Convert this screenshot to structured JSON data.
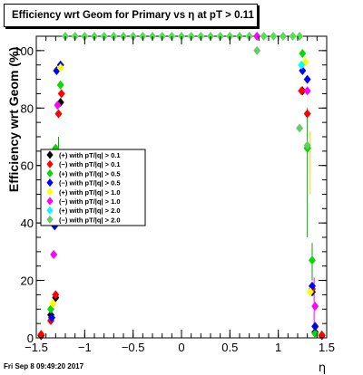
{
  "title": "Efficiency wrt Geom for Primary vs   η at pT > 0.11",
  "footer": {
    "timestamp": "Fri Sep  8 09:49:20 2017"
  },
  "chart_data": {
    "type": "scatter",
    "title": "Efficiency wrt Geom for Primary vs   η at pT > 0.11",
    "xlabel": "η",
    "ylabel": "Efficiency wrt Geom (%)",
    "xlim": [
      -1.5,
      1.5
    ],
    "ylim": [
      0,
      105
    ],
    "x_ticks": [
      "−1.5",
      "−1",
      "−0.5",
      "0",
      "0.5",
      "1",
      "1.5"
    ],
    "y_ticks": [
      "0",
      "20",
      "40",
      "60",
      "80",
      "100"
    ],
    "grid": false,
    "legend_position": "middle-left",
    "series": [
      {
        "name": "(+) with pT/|q| > 0.1",
        "color": "#000000",
        "points": [
          [
            -1.45,
            0.8
          ],
          [
            -1.35,
            8
          ],
          [
            -1.3,
            14
          ],
          [
            -1.27,
            64
          ],
          [
            -1.25,
            82
          ],
          [
            1.25,
            86
          ],
          [
            1.3,
            66
          ],
          [
            1.35,
            16
          ],
          [
            1.38,
            2
          ],
          [
            1.45,
            0.8
          ]
        ]
      },
      {
        "name": "(−) with pT/|q| > 0.1",
        "color": "#ff0000",
        "points": [
          [
            -1.45,
            1.2
          ],
          [
            -1.35,
            6
          ],
          [
            -1.3,
            15
          ],
          [
            -1.27,
            78
          ],
          [
            -1.24,
            85
          ],
          [
            1.24,
            86
          ],
          [
            1.3,
            78
          ],
          [
            1.35,
            17
          ],
          [
            1.38,
            4
          ],
          [
            1.45,
            1
          ]
        ]
      },
      {
        "name": "(+) with pT/|q| > 0.5",
        "color": "#00dd00",
        "points": [
          [
            -1.35,
            10
          ],
          [
            -1.3,
            66
          ],
          [
            -1.25,
            88
          ],
          [
            1.25,
            99
          ],
          [
            1.3,
            66
          ],
          [
            1.35,
            27
          ],
          [
            1.38,
            1.5
          ]
        ]
      },
      {
        "name": "(−) with pT/|q| > 0.5",
        "color": "#0000ff",
        "points": [
          [
            -1.34,
            7
          ],
          [
            -1.31,
            39
          ],
          [
            -1.29,
            93
          ],
          [
            -1.25,
            95
          ],
          [
            1.25,
            93
          ],
          [
            1.3,
            90
          ],
          [
            1.35,
            18
          ],
          [
            1.38,
            4
          ]
        ]
      },
      {
        "name": "(+) with pT/|q| > 1.0",
        "color": "#ffff00",
        "points": [
          [
            -1.33,
            12
          ],
          [
            -1.25,
            94
          ],
          [
            1.28,
            96
          ],
          [
            1.33,
            16
          ]
        ]
      },
      {
        "name": "(−) with pT/|q| > 1.0",
        "color": "#ff00ff",
        "points": [
          [
            -1.32,
            29
          ],
          [
            -1.28,
            81
          ],
          [
            0.78,
            105
          ],
          [
            1.3,
            86
          ],
          [
            1.38,
            11
          ]
        ]
      },
      {
        "name": "(+) with pT/|q| > 2.0",
        "color": "#00ffff",
        "points": [
          [
            -1.28,
            49
          ],
          [
            1.24,
            95
          ]
        ]
      },
      {
        "name": "(−) with pT/|q| > 2.0",
        "color": "#66cc66",
        "points": [
          [
            0.78,
            100
          ],
          [
            1.22,
            73
          ],
          [
            1.3,
            67
          ]
        ]
      },
      {
        "name": "",
        "color": "#55dd55",
        "points": [
          [
            -1.2,
            105
          ],
          [
            -1.1,
            105
          ],
          [
            -1.0,
            105
          ],
          [
            -0.9,
            105
          ],
          [
            -0.8,
            105
          ],
          [
            -0.7,
            105
          ],
          [
            -0.6,
            105
          ],
          [
            -0.5,
            105
          ],
          [
            -0.4,
            105
          ],
          [
            -0.3,
            105
          ],
          [
            -0.2,
            105
          ],
          [
            -0.1,
            105
          ],
          [
            0.0,
            105
          ],
          [
            0.1,
            105
          ],
          [
            0.2,
            105
          ],
          [
            0.3,
            105
          ],
          [
            0.4,
            105
          ],
          [
            0.5,
            105
          ],
          [
            0.6,
            105
          ],
          [
            0.7,
            105
          ],
          [
            0.85,
            105
          ],
          [
            0.95,
            105
          ],
          [
            1.05,
            105
          ],
          [
            1.15,
            105
          ],
          [
            1.22,
            105
          ]
        ]
      }
    ],
    "error_bars": [
      {
        "x": 1.3,
        "y_low": 35,
        "y_high": 80,
        "color": "#00aa00"
      },
      {
        "x": 1.33,
        "y_low": 50,
        "y_high": 72,
        "color": "#dddd00"
      },
      {
        "x": 1.35,
        "y_low": 20,
        "y_high": 33,
        "color": "#00aa00"
      },
      {
        "x": 1.37,
        "y_low": 5,
        "y_high": 21,
        "color": "#ff00ff"
      },
      {
        "x": -1.27,
        "y_low": 60,
        "y_high": 70,
        "color": "#00aa00"
      }
    ]
  }
}
